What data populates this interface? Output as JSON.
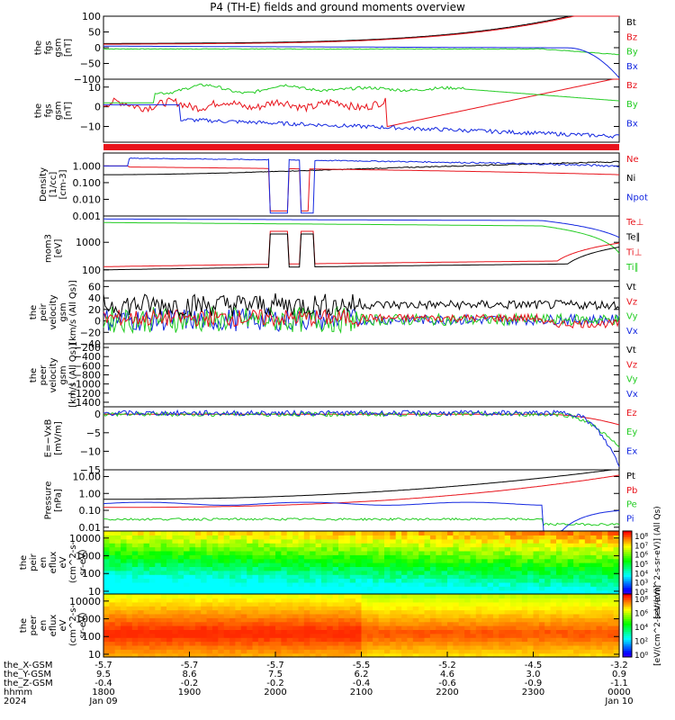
{
  "title": "P4 (TH-E) fields and ground moments overview",
  "colors": {
    "black": "#000000",
    "red": "#e8141c",
    "green": "#22cc22",
    "blue": "#1428e0"
  },
  "chart_data": [
    {
      "type": "line",
      "ylabel": [
        "the",
        "fgs",
        "gsm",
        "[nT]"
      ],
      "ylim": [
        -100,
        100
      ],
      "yticks": [
        "100",
        "50",
        "0",
        "−50",
        "−100"
      ],
      "ytick_values": [
        100,
        50,
        0,
        -50,
        -100
      ],
      "legend": [
        {
          "name": "Bt",
          "color": "black"
        },
        {
          "name": "Bz",
          "color": "red"
        },
        {
          "name": "By",
          "color": "green"
        },
        {
          "name": "Bx",
          "color": "blue"
        }
      ]
    },
    {
      "type": "line",
      "ylabel": [
        "the",
        "fgs",
        "gsm",
        "[nT]"
      ],
      "ylim": [
        -18,
        14
      ],
      "yticks": [
        "10",
        "0",
        "−10"
      ],
      "ytick_values": [
        10,
        0,
        -10
      ],
      "legend": [
        {
          "name": "Bz",
          "color": "red"
        },
        {
          "name": "By",
          "color": "green"
        },
        {
          "name": "Bx",
          "color": "blue"
        }
      ]
    },
    {
      "type": "line",
      "ylabel": [
        "Density",
        "[1/cc]",
        "[cm-3]"
      ],
      "yscale": "log",
      "ylim": [
        0.001,
        6
      ],
      "yticks": [
        "1.000",
        "0.100",
        "0.010",
        "0.001"
      ],
      "ytick_values": [
        1,
        0.1,
        0.01,
        0.001
      ],
      "legend": [
        {
          "name": "Ne",
          "color": "red"
        },
        {
          "name": "Ni",
          "color": "black"
        },
        {
          "name": "Npot",
          "color": "blue"
        }
      ]
    },
    {
      "type": "line",
      "ylabel": [
        "mom3",
        "[eV]"
      ],
      "yscale": "log",
      "ylim": [
        40,
        9000
      ],
      "yticks": [
        "1000",
        "100"
      ],
      "ytick_values": [
        1000,
        100
      ],
      "legend": [
        {
          "name": "Te⊥",
          "color": "red"
        },
        {
          "name": "Te∥",
          "color": "black"
        },
        {
          "name": "Ti⊥",
          "color": "red"
        },
        {
          "name": "Ti∥",
          "color": "green"
        }
      ]
    },
    {
      "type": "line",
      "ylabel": [
        "the",
        "peir",
        "velocity",
        "gsm",
        "[km/s (All Qs)]"
      ],
      "ylim": [
        -40,
        70
      ],
      "yticks": [
        "60",
        "40",
        "20",
        "0",
        "−20",
        "−40"
      ],
      "ytick_values": [
        60,
        40,
        20,
        0,
        -20,
        -40
      ],
      "legend": [
        {
          "name": "Vt",
          "color": "black"
        },
        {
          "name": "Vz",
          "color": "red"
        },
        {
          "name": "Vy",
          "color": "green"
        },
        {
          "name": "Vx",
          "color": "blue"
        }
      ]
    },
    {
      "type": "line",
      "ylabel": [
        "the",
        "peer",
        "velocity",
        "gsm",
        "[km/s (All Qs)]"
      ],
      "ylim": [
        -1500,
        -120
      ],
      "yticks": [
        "−200",
        "−400",
        "−600",
        "−800",
        "−1000",
        "−1200",
        "−1400"
      ],
      "ytick_values": [
        -200,
        -400,
        -600,
        -800,
        -1000,
        -1200,
        -1400
      ],
      "legend": [
        {
          "name": "Vt",
          "color": "black"
        },
        {
          "name": "Vz",
          "color": "red"
        },
        {
          "name": "Vy",
          "color": "green"
        },
        {
          "name": "Vx",
          "color": "blue"
        }
      ]
    },
    {
      "type": "line",
      "ylabel": [
        "E=−VxB",
        "[mV/m]"
      ],
      "ylim": [
        -15,
        2
      ],
      "yticks": [
        "0",
        "−5",
        "−10",
        "−15"
      ],
      "ytick_values": [
        0,
        -5,
        -10,
        -15
      ],
      "legend": [
        {
          "name": "Ez",
          "color": "red"
        },
        {
          "name": "Ey",
          "color": "green"
        },
        {
          "name": "Ex",
          "color": "blue"
        }
      ]
    },
    {
      "type": "line",
      "ylabel": [
        "Pressure",
        "[nPa]"
      ],
      "yscale": "log",
      "ylim": [
        0.006,
        25
      ],
      "yticks": [
        "10.00",
        "1.00",
        "0.10",
        "0.01"
      ],
      "ytick_values": [
        10,
        1,
        0.1,
        0.01
      ],
      "legend": [
        {
          "name": "Pt",
          "color": "black"
        },
        {
          "name": "Pb",
          "color": "red"
        },
        {
          "name": "Pe",
          "color": "green"
        },
        {
          "name": "Pi",
          "color": "blue"
        }
      ]
    },
    {
      "type": "heatmap",
      "ylabel": [
        "the",
        "peir",
        "en",
        "eflux",
        "eV",
        "(cm^2-s-",
        "sr-eV)"
      ],
      "yscale": "log",
      "ylim": [
        7,
        25000
      ],
      "yticks": [
        "10000",
        "1000",
        "100",
        "10"
      ],
      "ytick_values": [
        10000,
        1000,
        100,
        10
      ]
    },
    {
      "type": "heatmap",
      "ylabel": [
        "the",
        "peer",
        "en",
        "eflux",
        "eV",
        "(cm^2-s-",
        "sr-eV)"
      ],
      "yscale": "log",
      "ylim": [
        7,
        25000
      ],
      "yticks": [
        "10000",
        "1000",
        "100",
        "10"
      ],
      "ytick_values": [
        10000,
        1000,
        100,
        10
      ]
    }
  ],
  "colorbars": [
    {
      "ticks": [
        "10⁸",
        "10⁷",
        "10⁶",
        "10⁵",
        "10⁴",
        "10³",
        "10²"
      ],
      "label": "[eV/(cm^2-s-sr-eV)] (All Qs)"
    },
    {
      "ticks": [
        "10⁸",
        "10⁶",
        "10⁴",
        "10²",
        "10⁰"
      ],
      "label": "[eV/(cm^2-s-sr-eV)]"
    }
  ],
  "xaxis": {
    "row_labels": [
      "the_X-GSM",
      "the_Y-GSM",
      "the_Z-GSM",
      "hhmm",
      "2024"
    ],
    "columns": [
      [
        "-5.7",
        "9.5",
        "-0.4",
        "1800",
        "Jan 09"
      ],
      [
        "-5.7",
        "8.6",
        "-0.2",
        "1900",
        ""
      ],
      [
        "-5.7",
        "7.5",
        "-0.2",
        "2000",
        ""
      ],
      [
        "-5.5",
        "6.2",
        "-0.4",
        "2100",
        ""
      ],
      [
        "-5.2",
        "4.6",
        "-0.6",
        "2200",
        ""
      ],
      [
        "-4.5",
        "3.0",
        "-0.9",
        "2300",
        ""
      ],
      [
        "-3.2",
        "0.9",
        "-1.1",
        "0000",
        "Jan 10"
      ]
    ]
  }
}
